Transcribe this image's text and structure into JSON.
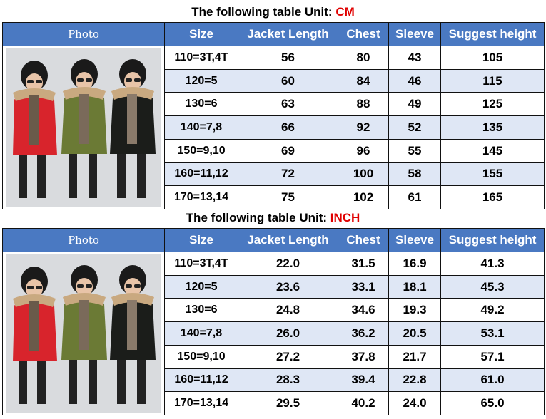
{
  "tables": [
    {
      "title_prefix": "The following table Unit: ",
      "title_unit": "CM",
      "headers": [
        "Photo",
        "Size",
        "Jacket Length",
        "Chest",
        "Sleeve",
        "Suggest height"
      ],
      "rows": [
        [
          "110=3T,4T",
          "56",
          "80",
          "43",
          "105"
        ],
        [
          "120=5",
          "60",
          "84",
          "46",
          "115"
        ],
        [
          "130=6",
          "63",
          "88",
          "49",
          "125"
        ],
        [
          "140=7,8",
          "66",
          "92",
          "52",
          "135"
        ],
        [
          "150=9,10",
          "69",
          "96",
          "55",
          "145"
        ],
        [
          "160=11,12",
          "72",
          "100",
          "58",
          "155"
        ],
        [
          "170=13,14",
          "75",
          "102",
          "61",
          "165"
        ]
      ]
    },
    {
      "title_prefix": "The following table Unit: ",
      "title_unit": "INCH",
      "headers": [
        "Photo",
        "Size",
        "Jacket Length",
        "Chest",
        "Sleeve",
        "Suggest height"
      ],
      "rows": [
        [
          "110=3T,4T",
          "22.0",
          "31.5",
          "16.9",
          "41.3"
        ],
        [
          "120=5",
          "23.6",
          "33.1",
          "18.1",
          "45.3"
        ],
        [
          "130=6",
          "24.8",
          "34.6",
          "19.3",
          "49.2"
        ],
        [
          "140=7,8",
          "26.0",
          "36.2",
          "20.5",
          "53.1"
        ],
        [
          "150=9,10",
          "27.2",
          "37.8",
          "21.7",
          "57.1"
        ],
        [
          "160=11,12",
          "28.3",
          "39.4",
          "22.8",
          "61.0"
        ],
        [
          "170=13,14",
          "29.5",
          "40.2",
          "24.0",
          "65.0"
        ]
      ]
    }
  ],
  "photo": {
    "description_icon": "three-kids-winter-jackets-photo",
    "jacket_colors": [
      "#d8242c",
      "#6b7a35",
      "#1b1d1a"
    ],
    "background": "#d9dbde"
  },
  "colors": {
    "header_bg": "#4a79c2",
    "alt_row_bg": "#dfe7f5",
    "unit_red": "#e00000"
  }
}
